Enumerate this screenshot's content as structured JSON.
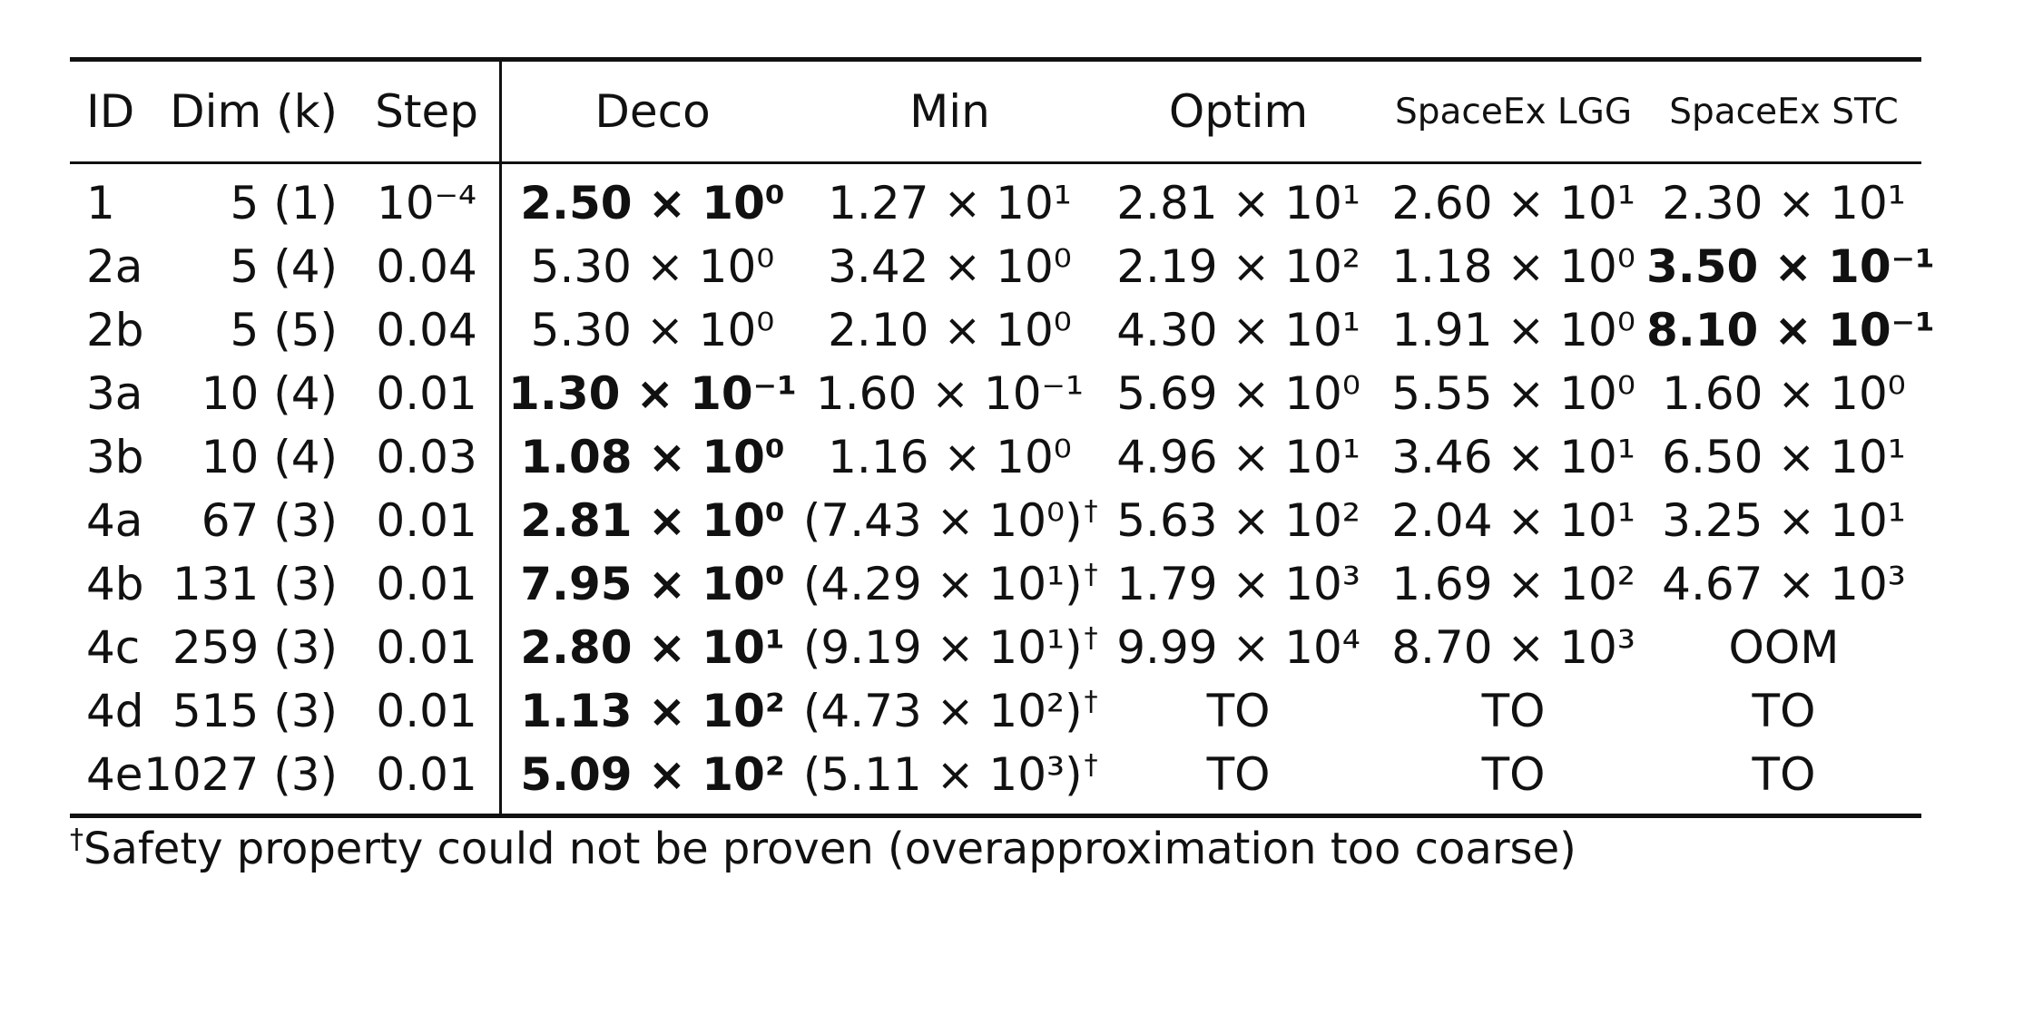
{
  "table": {
    "headers": {
      "id": "ID",
      "dim": "Dim (k)",
      "step": "Step",
      "deco": "Deco",
      "min": "Min",
      "optim": "Optim",
      "spaceex_lgg": "SpaceEx LGG",
      "spaceex_stc": "SpaceEx STC"
    },
    "rows": [
      {
        "id": "1",
        "dim": "5 (1)",
        "step": "10⁻⁴",
        "deco": "2.50 × 10⁰",
        "min": "1.27 × 10¹",
        "optim": "2.81 × 10¹",
        "lgg": "2.60 × 10¹",
        "stc": "2.30 × 10¹"
      },
      {
        "id": "2a",
        "dim": "5 (4)",
        "step": "0.04",
        "deco": "5.30 × 10⁰",
        "min": "3.42 × 10⁰",
        "optim": "2.19 × 10²",
        "lgg": "1.18 × 10⁰",
        "stc": "3.50 × 10⁻¹"
      },
      {
        "id": "2b",
        "dim": "5 (5)",
        "step": "0.04",
        "deco": "5.30 × 10⁰",
        "min": "2.10 × 10⁰",
        "optim": "4.30 × 10¹",
        "lgg": "1.91 × 10⁰",
        "stc": "8.10 × 10⁻¹"
      },
      {
        "id": "3a",
        "dim": "10 (4)",
        "step": "0.01",
        "deco": "1.30 × 10⁻¹",
        "min": "1.60 × 10⁻¹",
        "optim": "5.69 × 10⁰",
        "lgg": "5.55 × 10⁰",
        "stc": "1.60 × 10⁰"
      },
      {
        "id": "3b",
        "dim": "10 (4)",
        "step": "0.03",
        "deco": "1.08 × 10⁰",
        "min": "1.16 × 10⁰",
        "optim": "4.96 × 10¹",
        "lgg": "3.46 × 10¹",
        "stc": "6.50 × 10¹"
      },
      {
        "id": "4a",
        "dim": "67 (3)",
        "step": "0.01",
        "deco": "2.81 × 10⁰",
        "min": "(7.43 × 10⁰)",
        "optim": "5.63 × 10²",
        "lgg": "2.04 × 10¹",
        "stc": "3.25 × 10¹"
      },
      {
        "id": "4b",
        "dim": "131 (3)",
        "step": "0.01",
        "deco": "7.95 × 10⁰",
        "min": "(4.29 × 10¹)",
        "optim": "1.79 × 10³",
        "lgg": "1.69 × 10²",
        "stc": "4.67 × 10³"
      },
      {
        "id": "4c",
        "dim": "259 (3)",
        "step": "0.01",
        "deco": "2.80 × 10¹",
        "min": "(9.19 × 10¹)",
        "optim": "9.99 × 10⁴",
        "lgg": "8.70 × 10³",
        "stc": "OOM"
      },
      {
        "id": "4d",
        "dim": "515 (3)",
        "step": "0.01",
        "deco": "1.13 × 10²",
        "min": "(4.73 × 10²)",
        "optim": "TO",
        "lgg": "TO",
        "stc": "TO"
      },
      {
        "id": "4e",
        "dim": "1027 (3)",
        "step": "0.01",
        "deco": "5.09 × 10²",
        "min": "(5.11 × 10³)",
        "optim": "TO",
        "lgg": "TO",
        "stc": "TO"
      }
    ],
    "dagger": "†",
    "footnote": "Safety property could not be proven (overapproximation too coarse)"
  }
}
